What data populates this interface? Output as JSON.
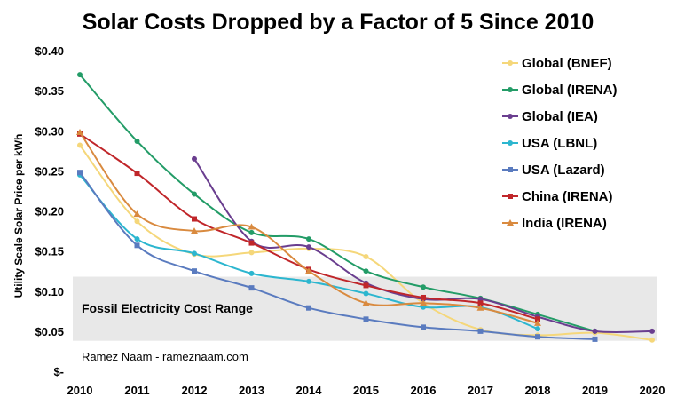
{
  "chart_data": {
    "type": "line",
    "title": "Solar Costs Dropped by a Factor of 5 Since 2010",
    "xlabel": "",
    "ylabel": "Utility Scale Solar Price per kWh",
    "x": [
      2010,
      2011,
      2012,
      2013,
      2014,
      2015,
      2016,
      2017,
      2018,
      2019,
      2020
    ],
    "xlim": [
      2010,
      2020
    ],
    "ylim": [
      0,
      0.4
    ],
    "y_ticks": [
      0,
      0.05,
      0.1,
      0.15,
      0.2,
      0.25,
      0.3,
      0.35,
      0.4
    ],
    "y_tick_labels": [
      "$-",
      "$0.05",
      "$0.10",
      "$0.15",
      "$0.20",
      "$0.25",
      "$0.30",
      "$0.35",
      "$0.40"
    ],
    "x_tick_labels": [
      "2010",
      "2011",
      "2012",
      "2013",
      "2014",
      "2015",
      "2016",
      "2017",
      "2018",
      "2019",
      "2020"
    ],
    "grid": false,
    "legend_position": "top-right",
    "band": {
      "label": "Fossil Electricity Cost Range",
      "low": 0.038,
      "high": 0.118,
      "color": "#e8e8e8"
    },
    "annotation": "Ramez Naam - rameznaam.com",
    "series": [
      {
        "name": "Global (BNEF)",
        "color": "#f5d77a",
        "marker": "circle",
        "points": [
          [
            2010,
            0.282
          ],
          [
            2011,
            0.187
          ],
          [
            2012,
            0.146
          ],
          [
            2013,
            0.148
          ],
          [
            2014,
            0.153
          ],
          [
            2015,
            0.143
          ],
          [
            2016,
            0.085
          ],
          [
            2017,
            0.052
          ],
          [
            2018,
            0.045
          ],
          [
            2019,
            0.048
          ],
          [
            2020,
            0.039
          ]
        ]
      },
      {
        "name": "Global (IRENA)",
        "color": "#239c67",
        "marker": "circle",
        "points": [
          [
            2010,
            0.37
          ],
          [
            2011,
            0.287
          ],
          [
            2012,
            0.221
          ],
          [
            2013,
            0.173
          ],
          [
            2014,
            0.165
          ],
          [
            2015,
            0.125
          ],
          [
            2016,
            0.105
          ],
          [
            2017,
            0.091
          ],
          [
            2018,
            0.071
          ],
          [
            2019,
            0.05
          ]
        ]
      },
      {
        "name": "Global (IEA)",
        "color": "#6a3e8f",
        "marker": "circle",
        "points": [
          [
            2012,
            0.265
          ],
          [
            2013,
            0.162
          ],
          [
            2014,
            0.155
          ],
          [
            2015,
            0.11
          ],
          [
            2016,
            0.09
          ],
          [
            2017,
            0.09
          ],
          [
            2018,
            0.068
          ],
          [
            2019,
            0.05
          ],
          [
            2020,
            0.05
          ]
        ]
      },
      {
        "name": "USA (LBNL)",
        "color": "#2cb6cf",
        "marker": "circle",
        "points": [
          [
            2010,
            0.245
          ],
          [
            2011,
            0.165
          ],
          [
            2012,
            0.147
          ],
          [
            2013,
            0.122
          ],
          [
            2014,
            0.112
          ],
          [
            2015,
            0.097
          ],
          [
            2016,
            0.08
          ],
          [
            2017,
            0.08
          ],
          [
            2018,
            0.053
          ]
        ]
      },
      {
        "name": "USA (Lazard)",
        "color": "#5a7bbf",
        "marker": "square",
        "points": [
          [
            2010,
            0.248
          ],
          [
            2011,
            0.157
          ],
          [
            2012,
            0.125
          ],
          [
            2013,
            0.104
          ],
          [
            2014,
            0.079
          ],
          [
            2015,
            0.065
          ],
          [
            2016,
            0.055
          ],
          [
            2017,
            0.05
          ],
          [
            2018,
            0.043
          ],
          [
            2019,
            0.04
          ]
        ]
      },
      {
        "name": "China (IRENA)",
        "color": "#c0262a",
        "marker": "square",
        "points": [
          [
            2010,
            0.296
          ],
          [
            2011,
            0.247
          ],
          [
            2012,
            0.19
          ],
          [
            2013,
            0.16
          ],
          [
            2014,
            0.127
          ],
          [
            2015,
            0.107
          ],
          [
            2016,
            0.092
          ],
          [
            2017,
            0.085
          ],
          [
            2018,
            0.065
          ]
        ]
      },
      {
        "name": "India (IRENA)",
        "color": "#d98a3f",
        "marker": "triangle",
        "points": [
          [
            2010,
            0.298
          ],
          [
            2011,
            0.196
          ],
          [
            2012,
            0.175
          ],
          [
            2013,
            0.18
          ],
          [
            2014,
            0.125
          ],
          [
            2015,
            0.085
          ],
          [
            2016,
            0.085
          ],
          [
            2017,
            0.079
          ],
          [
            2018,
            0.06
          ]
        ]
      }
    ]
  }
}
